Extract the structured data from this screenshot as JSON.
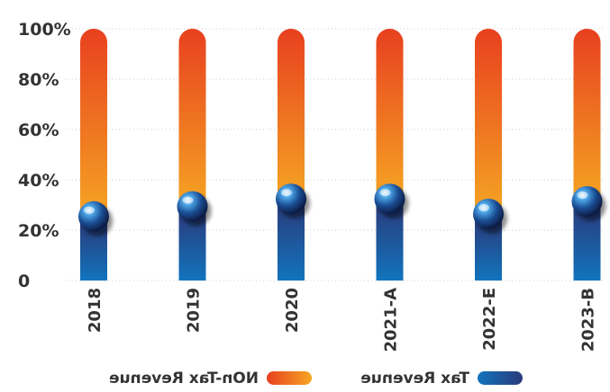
{
  "chart_data": {
    "type": "bar",
    "stacked": true,
    "categories": [
      "2018",
      "2019",
      "2020",
      "2021-A",
      "2022-E",
      "2023-B"
    ],
    "series": [
      {
        "name": "Tax Revenue",
        "values": [
          24,
          28,
          31,
          31,
          25,
          30
        ]
      },
      {
        "name": "NOn-Tax Revenue",
        "values": [
          76,
          72,
          69,
          69,
          75,
          70
        ]
      }
    ],
    "ylim": [
      0,
      100
    ],
    "yticks": [
      "0",
      "20%",
      "40%",
      "60%",
      "80%",
      "100%"
    ],
    "grid": true,
    "legend": "bottom",
    "colors": {
      "tax_top": "#2a3a7a",
      "tax_bottom": "#1274bd",
      "nontax_top": "#e8401f",
      "nontax_bottom": "#f5a623",
      "grid": "#cccccc",
      "text": "#333333"
    }
  }
}
